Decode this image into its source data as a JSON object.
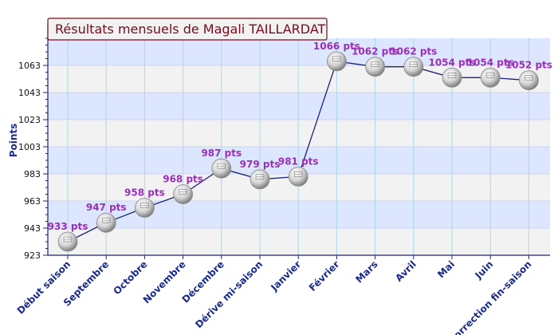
{
  "chart_data": {
    "type": "line",
    "title": "Résultats mensuels de Magali TAILLARDAT",
    "ylabel": "Points",
    "xlabel": "",
    "categories": [
      "Début saison",
      "Septembre",
      "Octobre",
      "Novembre",
      "Décembre",
      "Dérive mi-saison",
      "Janvier",
      "Février",
      "Mars",
      "Avril",
      "Mai",
      "Juin",
      "Correction fin-saison"
    ],
    "values": [
      933,
      947,
      958,
      968,
      987,
      979,
      981,
      1066,
      1062,
      1062,
      1054,
      1054,
      1052
    ],
    "point_labels": [
      "933 pts",
      "947 pts",
      "958 pts",
      "968 pts",
      "987 pts",
      "979 pts",
      "981 pts",
      "1066 pts",
      "1062 pts",
      "1062 pts",
      "1054 pts",
      "1054 pts",
      "1052 pts"
    ],
    "yticks": [
      "923",
      "943",
      "963",
      "983",
      "1003",
      "1023",
      "1043",
      "1063"
    ],
    "ylim": [
      923,
      1083
    ],
    "grid": true,
    "colors": {
      "line": "#1a237e",
      "label": "#9b30b8",
      "band_light": "#dde6ff",
      "band_grey": "#f2f2f2",
      "vgrid": "#a8d8ea",
      "axis_text": "#1a2b8c",
      "title": "#7a0a1a",
      "title_bg": "#f2f2f2"
    }
  }
}
